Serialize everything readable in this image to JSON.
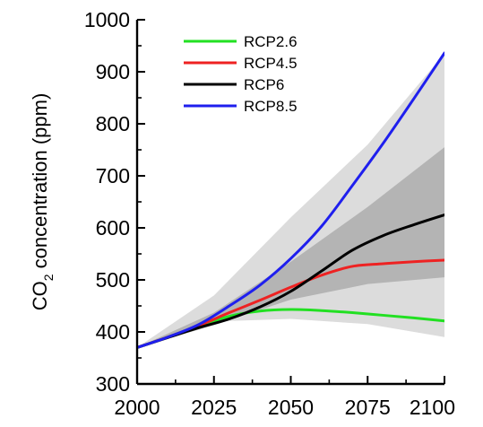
{
  "chart_data": {
    "type": "line",
    "title": "",
    "xlabel": "",
    "ylabel": "CO2 concentration (ppm)",
    "ylabel_main": "CO",
    "ylabel_sub": "2",
    "ylabel_rest": " concentration (ppm)",
    "xlim": [
      2000,
      2100
    ],
    "ylim": [
      300,
      1000
    ],
    "x_ticks": [
      2000,
      2025,
      2050,
      2075,
      2100
    ],
    "x_tick_labels": [
      "2000",
      "2025",
      "2050",
      "2075",
      "2100"
    ],
    "y_ticks": [
      300,
      400,
      500,
      600,
      700,
      800,
      900,
      1000
    ],
    "y_tick_labels": [
      "300",
      "400",
      "500",
      "600",
      "700",
      "800",
      "900",
      "1000"
    ],
    "grid": false,
    "legend_position": "top-left",
    "series": [
      {
        "name": "RCP2.6",
        "color": "#22e022",
        "x": [
          2000,
          2010,
          2020,
          2030,
          2040,
          2050,
          2060,
          2070,
          2080,
          2090,
          2100
        ],
        "y": [
          370,
          390,
          411,
          430,
          440,
          443,
          441,
          437,
          432,
          427,
          421
        ]
      },
      {
        "name": "RCP4.5",
        "color": "#ee2222",
        "x": [
          2000,
          2010,
          2020,
          2030,
          2040,
          2050,
          2060,
          2070,
          2080,
          2090,
          2100
        ],
        "y": [
          370,
          390,
          412,
          437,
          461,
          486,
          509,
          526,
          531,
          535,
          538
        ]
      },
      {
        "name": "RCP6",
        "color": "#000000",
        "x": [
          2000,
          2010,
          2020,
          2030,
          2040,
          2050,
          2060,
          2070,
          2080,
          2090,
          2100
        ],
        "y": [
          370,
          389,
          408,
          425,
          448,
          478,
          517,
          557,
          585,
          606,
          625
        ]
      },
      {
        "name": "RCP8.5",
        "color": "#1f1fee",
        "x": [
          2000,
          2010,
          2020,
          2030,
          2040,
          2050,
          2060,
          2070,
          2080,
          2090,
          2100
        ],
        "y": [
          370,
          390,
          414,
          450,
          490,
          541,
          603,
          681,
          762,
          848,
          936
        ]
      }
    ],
    "bands": [
      {
        "color": "#dcdcdc",
        "x": [
          2000,
          2025,
          2050,
          2075,
          2100
        ],
        "upper": [
          370,
          470,
          620,
          760,
          935
        ],
        "lower": [
          370,
          420,
          425,
          415,
          390
        ]
      },
      {
        "color": "#b4b4b4",
        "x": [
          2000,
          2025,
          2050,
          2075,
          2100
        ],
        "upper": [
          370,
          437,
          535,
          640,
          755
        ],
        "lower": [
          370,
          413,
          462,
          492,
          505
        ]
      }
    ]
  }
}
